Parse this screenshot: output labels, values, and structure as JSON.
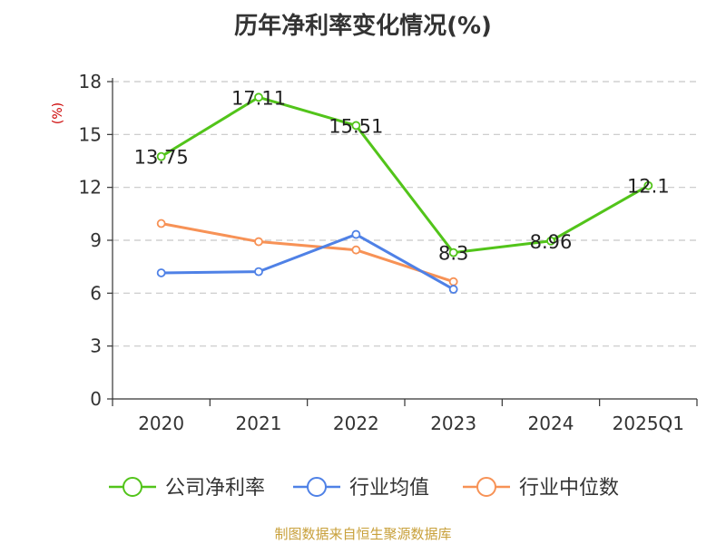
{
  "chart_data": {
    "type": "line",
    "title": "历年净利率变化情况(%)",
    "ylabel": "(%)",
    "ylim": [
      0,
      18
    ],
    "yticks": [
      0,
      3,
      6,
      9,
      12,
      15,
      18
    ],
    "categories": [
      "2020",
      "2021",
      "2022",
      "2023",
      "2024",
      "2025Q1"
    ],
    "grid": true,
    "legend_position": "bottom",
    "series": [
      {
        "name": "公司净利率",
        "color": "#52c41a",
        "values": [
          13.75,
          17.11,
          15.51,
          8.3,
          8.96,
          12.1
        ],
        "labels": [
          "13.75",
          "17.11",
          "15.51",
          "8.3",
          "8.96",
          "12.1"
        ]
      },
      {
        "name": "行业均值",
        "color": "#4f81e6",
        "values": [
          7.15,
          7.22,
          9.33,
          6.22,
          null,
          null
        ]
      },
      {
        "name": "行业中位数",
        "color": "#f79256",
        "values": [
          9.95,
          8.92,
          8.45,
          6.65,
          null,
          null
        ]
      }
    ]
  },
  "footer": {
    "source": "制图数据来自恒生聚源数据库"
  }
}
